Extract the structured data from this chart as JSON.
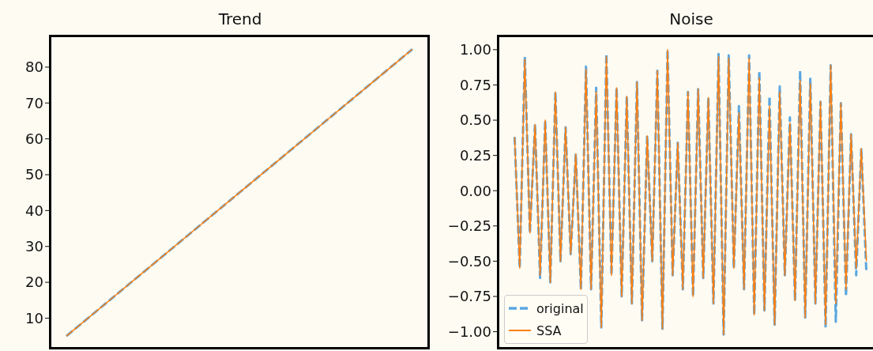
{
  "chart_data": [
    {
      "type": "line",
      "title": "Trend",
      "categories": [
        null,
        null,
        null,
        null,
        null,
        null,
        null,
        null,
        null
      ],
      "ylim": [
        1.5,
        88.8
      ],
      "yticks": [
        10,
        20,
        30,
        40,
        50,
        60,
        70,
        80
      ],
      "tick_labels": "y",
      "series": [
        {
          "color": "#5aa6e0",
          "line_style": "dashed",
          "values": [
            5,
            15,
            25,
            35,
            45,
            55,
            65,
            75,
            85
          ]
        },
        {
          "color": "#ff7f0e",
          "line_style": "solid",
          "values": [
            5,
            15,
            25,
            35,
            45,
            55,
            65,
            75,
            85
          ]
        }
      ]
    },
    {
      "type": "line",
      "title": "Noise",
      "categories": [
        null,
        null,
        null,
        null,
        null,
        null,
        null,
        null,
        null,
        null,
        null,
        null,
        null,
        null,
        null,
        null,
        null,
        null,
        null,
        null,
        null,
        null,
        null,
        null,
        null,
        null,
        null,
        null,
        null,
        null,
        null,
        null,
        null,
        null,
        null,
        null,
        null,
        null,
        null,
        null,
        null,
        null,
        null,
        null,
        null,
        null,
        null,
        null,
        null,
        null,
        null,
        null,
        null,
        null,
        null,
        null,
        null,
        null,
        null,
        null,
        null,
        null,
        null,
        null,
        null,
        null,
        null,
        null,
        null,
        null
      ],
      "ylim": [
        -1.12,
        1.1
      ],
      "yticks": [
        {
          "value": -1,
          "label": "−1.00"
        },
        {
          "value": -0.75,
          "label": "−0.75"
        },
        {
          "value": -0.5,
          "label": "−0.50"
        },
        {
          "value": -0.25,
          "label": "−0.25"
        },
        {
          "value": 0,
          "label": "0.00"
        },
        {
          "value": 0.25,
          "label": "0.25"
        },
        {
          "value": 0.5,
          "label": "0.50"
        },
        {
          "value": 0.75,
          "label": "0.75"
        },
        {
          "value": 1,
          "label": "1.00"
        }
      ],
      "tick_labels": "y",
      "legend": "bottom left",
      "series": [
        {
          "name": "original",
          "color": "#5aa6e0",
          "line_style": "dashed",
          "values": [
            0.38,
            -0.55,
            0.95,
            -0.3,
            0.47,
            -0.62,
            0.5,
            -0.65,
            0.7,
            -0.5,
            0.45,
            -0.45,
            0.26,
            -0.7,
            0.88,
            -0.7,
            0.73,
            -0.97,
            0.97,
            -0.6,
            0.73,
            -0.75,
            0.67,
            -0.8,
            0.77,
            -0.92,
            0.39,
            -0.5,
            0.85,
            -0.98,
            1.0,
            -0.6,
            0.34,
            -0.7,
            0.7,
            -0.75,
            0.72,
            -0.62,
            0.66,
            -0.8,
            0.97,
            -1.02,
            0.96,
            -0.55,
            0.6,
            -0.7,
            0.96,
            -0.88,
            0.85,
            -0.85,
            0.67,
            -0.95,
            0.74,
            -0.6,
            0.52,
            -0.78,
            0.85,
            -0.9,
            0.8,
            -0.8,
            0.63,
            -0.97,
            0.89,
            -0.93,
            0.62,
            -0.75,
            0.4,
            -0.6,
            0.3,
            -0.58
          ]
        },
        {
          "name": "SSA",
          "color": "#ff7f0e",
          "line_style": "solid",
          "values": [
            0.38,
            -0.55,
            0.93,
            -0.3,
            0.47,
            -0.6,
            0.5,
            -0.65,
            0.7,
            -0.5,
            0.45,
            -0.45,
            0.26,
            -0.7,
            0.86,
            -0.7,
            0.7,
            -0.97,
            0.95,
            -0.6,
            0.73,
            -0.75,
            0.67,
            -0.8,
            0.77,
            -0.92,
            0.39,
            -0.5,
            0.85,
            -0.98,
            1.0,
            -0.6,
            0.34,
            -0.7,
            0.7,
            -0.75,
            0.72,
            -0.62,
            0.66,
            -0.8,
            0.95,
            -1.02,
            0.94,
            -0.55,
            0.55,
            -0.7,
            0.94,
            -0.88,
            0.8,
            -0.85,
            0.6,
            -0.95,
            0.7,
            -0.6,
            0.48,
            -0.78,
            0.78,
            -0.9,
            0.76,
            -0.8,
            0.63,
            -0.95,
            0.89,
            -0.8,
            0.62,
            -0.7,
            0.4,
            -0.55,
            0.3,
            -0.5
          ]
        }
      ]
    }
  ]
}
